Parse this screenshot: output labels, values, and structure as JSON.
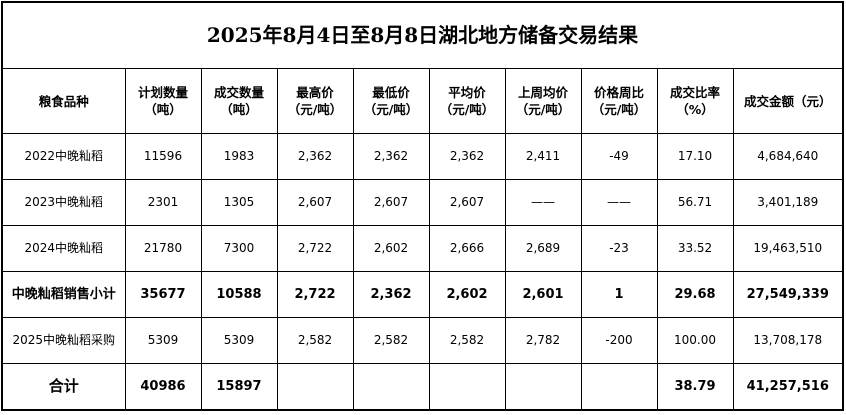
{
  "title": "2025年8月4日至8月8日湖北地方储备交易结果",
  "headers": [
    "粮食品种",
    "计划数量（吨）",
    "成交数量（吨）",
    "最高价（元/吨）",
    "最低价（元/吨）",
    "平均价（元/吨）",
    "上周均价（元/吨）",
    "价格周比（元/吨）",
    "成交比率（%）",
    "成交金额（元）"
  ],
  "rows": [
    [
      "2022中晚籼稻",
      "11596",
      "1983",
      "2,362",
      "2,362",
      "2,362",
      "2,411",
      "-49",
      "17.10",
      "4,684,640"
    ],
    [
      "2023中晚籼稻",
      "2301",
      "1305",
      "2,607",
      "2,607",
      "2,607",
      "——",
      "——",
      "56.71",
      "3,401,189"
    ],
    [
      "2024中晚籼稻",
      "21780",
      "7300",
      "2,722",
      "2,602",
      "2,666",
      "2,689",
      "-23",
      "33.52",
      "19,463,510"
    ],
    [
      "中晚籼稻销售小计",
      "35677",
      "10588",
      "2,722",
      "2,362",
      "2,602",
      "2,601",
      "1",
      "29.68",
      "27,549,339"
    ],
    [
      "2025中晚籼稻采购",
      "5309",
      "5309",
      "2,582",
      "2,582",
      "2,582",
      "2,782",
      "-200",
      "100.00",
      "13,708,178"
    ],
    [
      "合计",
      "40986",
      "15897",
      "",
      "",
      "",
      "",
      "",
      "38.79",
      "41,257,516"
    ]
  ]
}
